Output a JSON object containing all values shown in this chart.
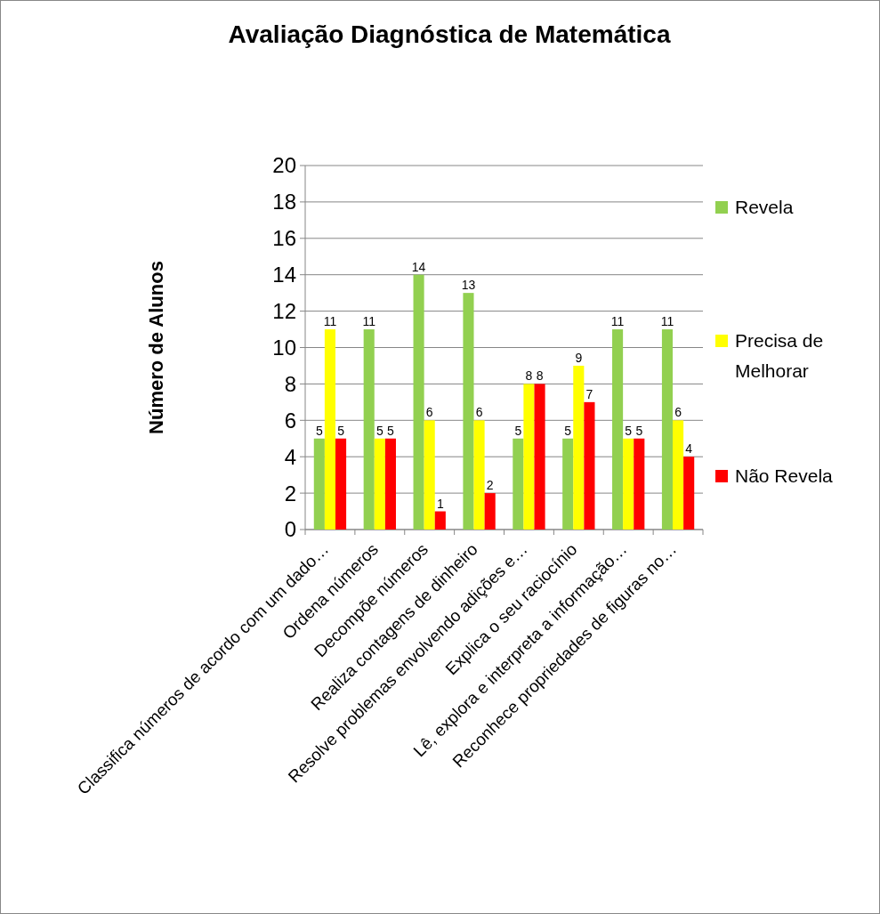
{
  "chart_data": {
    "type": "bar",
    "title": "Avaliação Diagnóstica de Matemática",
    "ylabel": "Número de Alunos",
    "categories": [
      "Classifica números de acordo com um dado…",
      "Ordena números",
      "Decompõe números",
      "Realiza contagens de dinheiro",
      "Resolve problemas envolvendo adições e…",
      "Explica o seu raciocínio",
      "Lê, explora e interpreta a informação…",
      "Reconhece propriedades de figuras no…"
    ],
    "series": [
      {
        "name": "Revela",
        "color": "#92d050",
        "values": [
          5,
          11,
          14,
          13,
          5,
          5,
          11,
          11
        ]
      },
      {
        "name": "Precisa de Melhorar",
        "color": "#ffff00",
        "values": [
          11,
          5,
          6,
          6,
          8,
          9,
          5,
          6
        ]
      },
      {
        "name": "Não Revela",
        "color": "#ff0000",
        "values": [
          5,
          5,
          1,
          2,
          8,
          7,
          5,
          4
        ]
      }
    ],
    "ylim": [
      0,
      20
    ],
    "yticks": [
      0,
      2,
      4,
      6,
      8,
      10,
      12,
      14,
      16,
      18,
      20
    ],
    "grid": "y",
    "legend": "right",
    "data_labels": true
  }
}
